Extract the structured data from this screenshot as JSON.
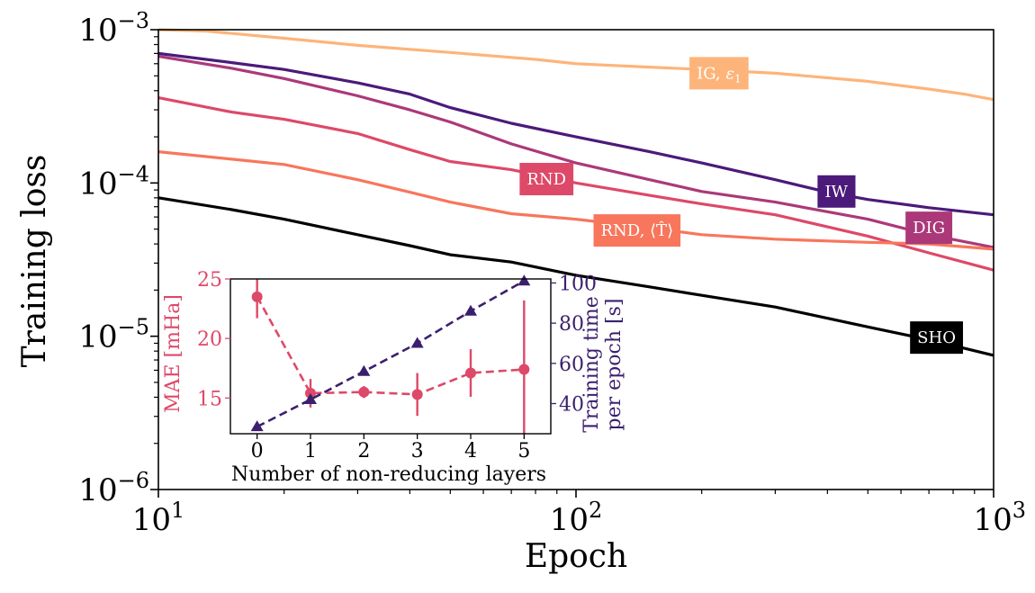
{
  "chart_data": [
    {
      "type": "line",
      "xlabel": "Epoch",
      "ylabel": "Training loss",
      "xscale": "log",
      "yscale": "log",
      "xlim": [
        10,
        1000
      ],
      "ylim": [
        1e-06,
        0.001
      ],
      "xticks": [
        {
          "value": 10,
          "base": "10",
          "exp": "1"
        },
        {
          "value": 100,
          "base": "10",
          "exp": "2"
        },
        {
          "value": 1000,
          "base": "10",
          "exp": "3"
        }
      ],
      "yticks": [
        {
          "value": 1e-06,
          "base": "10",
          "exp": "−6"
        },
        {
          "value": 1e-05,
          "base": "10",
          "exp": "−5"
        },
        {
          "value": 0.0001,
          "base": "10",
          "exp": "−4"
        },
        {
          "value": 0.001,
          "base": "10",
          "exp": "−3"
        }
      ],
      "grid": false,
      "series": [
        {
          "name": "IG, ε1",
          "label_text": "IG, ",
          "label_sym": "ε",
          "label_sub": "1",
          "label_pos": [
            220,
            0.00052
          ],
          "color": "#fdb47a",
          "x": [
            10,
            13,
            20,
            30,
            50,
            80,
            100,
            150,
            200,
            300,
            500,
            700,
            850,
            1000
          ],
          "y": [
            0.001,
            0.00098,
            0.00088,
            0.00079,
            0.00071,
            0.00064,
            0.0006,
            0.00057,
            0.00055,
            0.00052,
            0.00046,
            0.00041,
            0.00038,
            0.00035
          ]
        },
        {
          "name": "IW",
          "label_text": "IW",
          "label_pos": [
            420,
            8.8e-05
          ],
          "color": "#4b1a7a",
          "x": [
            10,
            15,
            20,
            30,
            40,
            50,
            70,
            100,
            150,
            200,
            300,
            400,
            500,
            700,
            1000
          ],
          "y": [
            0.0007,
            0.00061,
            0.00055,
            0.00045,
            0.00038,
            0.00031,
            0.000245,
            0.0002,
            0.00016,
            0.000135,
            0.000105,
            8.7e-05,
            7.8e-05,
            6.9e-05,
            6.2e-05
          ]
        },
        {
          "name": "DIG",
          "label_text": "DIG",
          "label_pos": [
            700,
            5.1e-05
          ],
          "color": "#ab3979",
          "x": [
            10,
            15,
            20,
            30,
            40,
            50,
            70,
            100,
            150,
            200,
            300,
            500,
            700,
            1000
          ],
          "y": [
            0.00067,
            0.00056,
            0.00048,
            0.00037,
            0.0003,
            0.00025,
            0.00018,
            0.000135,
            0.000105,
            8.8e-05,
            7.5e-05,
            5.8e-05,
            4.6e-05,
            3.8e-05
          ]
        },
        {
          "name": "RND",
          "label_text": "RND",
          "label_pos": [
            85,
            0.000106
          ],
          "color": "#dd4968",
          "x": [
            10,
            15,
            20,
            30,
            40,
            50,
            70,
            100,
            150,
            200,
            300,
            500,
            700,
            1000
          ],
          "y": [
            0.00036,
            0.00029,
            0.00026,
            0.00021,
            0.000165,
            0.000138,
            0.000122,
            0.0001,
            8.3e-05,
            7.3e-05,
            6.2e-05,
            4.5e-05,
            3.5e-05,
            2.7e-05
          ]
        },
        {
          "name": "RND, ⟨T̂⟩",
          "label_text": "RND, ⟨T̂⟩",
          "label_pos": [
            140,
            4.9e-05
          ],
          "color": "#f8765c",
          "x": [
            10,
            15,
            20,
            30,
            40,
            50,
            70,
            100,
            150,
            200,
            300,
            500,
            700,
            1000
          ],
          "y": [
            0.00016,
            0.000143,
            0.000132,
            0.000105,
            8.7e-05,
            7.5e-05,
            6.3e-05,
            5.8e-05,
            5.1e-05,
            4.6e-05,
            4.3e-05,
            4.1e-05,
            4e-05,
            3.7e-05
          ]
        },
        {
          "name": "SHO",
          "label_text": "SHO",
          "label_pos": [
            730,
            9.8e-06
          ],
          "color": "#000000",
          "x": [
            10,
            15,
            20,
            30,
            40,
            50,
            70,
            100,
            150,
            200,
            300,
            500,
            700,
            1000
          ],
          "y": [
            8e-05,
            6.7e-05,
            5.8e-05,
            4.6e-05,
            3.9e-05,
            3.4e-05,
            3.05e-05,
            2.5e-05,
            2.1e-05,
            1.85e-05,
            1.55e-05,
            1.15e-05,
            9.5e-06,
            7.5e-06
          ]
        }
      ]
    },
    {
      "type": "scatter",
      "inset": true,
      "xlabel": "Number of non-reducing layers",
      "ylabel": "MAE [mHa]",
      "ylabel_right": "Training time per epoch [s]",
      "ylabel_right_lines": [
        "Training time",
        "per epoch [s]"
      ],
      "xlim": [
        -0.5,
        5.5
      ],
      "ylim": [
        12,
        25
      ],
      "ylim_right": [
        25,
        102
      ],
      "xticks": [
        "0",
        "1",
        "2",
        "3",
        "4",
        "5"
      ],
      "yticks": [
        "15",
        "20",
        "25"
      ],
      "yticks_right": [
        "40",
        "60",
        "80",
        "100"
      ],
      "series": [
        {
          "name": "MAE",
          "axis": "left",
          "color": "#dd4968",
          "marker": "circle",
          "x": [
            0,
            1,
            2,
            3,
            4,
            5
          ],
          "y": [
            23.5,
            15.4,
            15.5,
            15.3,
            17.1,
            17.4
          ],
          "err": [
            1.8,
            1.2,
            0.5,
            1.8,
            2.0,
            5.8
          ]
        },
        {
          "name": "Training time",
          "axis": "right",
          "color": "#3b1f6e",
          "marker": "triangle",
          "x": [
            0,
            1,
            2,
            3,
            4,
            5
          ],
          "y": [
            28.5,
            42,
            56,
            70,
            86,
            101
          ]
        }
      ]
    }
  ]
}
